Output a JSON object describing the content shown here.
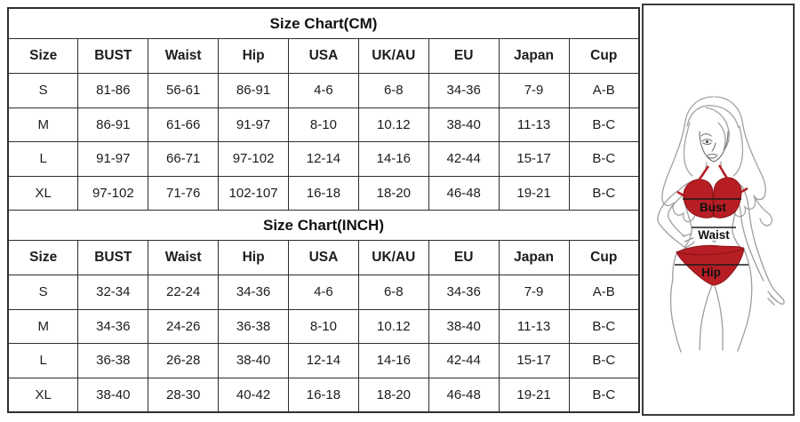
{
  "page_title": "Size Chart",
  "tables": [
    {
      "title": "Size Chart(CM)",
      "columns": [
        "Size",
        "BUST",
        "Waist",
        "Hip",
        "USA",
        "UK/AU",
        "EU",
        "Japan",
        "Cup"
      ],
      "rows": [
        [
          "S",
          "81-86",
          "56-61",
          "86-91",
          "4-6",
          "6-8",
          "34-36",
          "7-9",
          "A-B"
        ],
        [
          "M",
          "86-91",
          "61-66",
          "91-97",
          "8-10",
          "10.12",
          "38-40",
          "11-13",
          "B-C"
        ],
        [
          "L",
          "91-97",
          "66-71",
          "97-102",
          "12-14",
          "14-16",
          "42-44",
          "15-17",
          "B-C"
        ],
        [
          "XL",
          "97-102",
          "71-76",
          "102-107",
          "16-18",
          "18-20",
          "46-48",
          "19-21",
          "B-C"
        ]
      ]
    },
    {
      "title": "Size Chart(INCH)",
      "columns": [
        "Size",
        "BUST",
        "Waist",
        "Hip",
        "USA",
        "UK/AU",
        "EU",
        "Japan",
        "Cup"
      ],
      "rows": [
        [
          "S",
          "32-34",
          "22-24",
          "34-36",
          "4-6",
          "6-8",
          "34-36",
          "7-9",
          "A-B"
        ],
        [
          "M",
          "34-36",
          "24-26",
          "36-38",
          "8-10",
          "10.12",
          "38-40",
          "11-13",
          "B-C"
        ],
        [
          "L",
          "36-38",
          "26-28",
          "38-40",
          "12-14",
          "14-16",
          "42-44",
          "15-17",
          "B-C"
        ],
        [
          "XL",
          "38-40",
          "28-30",
          "40-42",
          "16-18",
          "18-20",
          "46-48",
          "19-21",
          "B-C"
        ]
      ]
    }
  ],
  "chart_data": [
    {
      "type": "table",
      "title": "Size Chart(CM)",
      "columns": [
        "Size",
        "BUST",
        "Waist",
        "Hip",
        "USA",
        "UK/AU",
        "EU",
        "Japan",
        "Cup"
      ],
      "rows": [
        [
          "S",
          "81-86",
          "56-61",
          "86-91",
          "4-6",
          "6-8",
          "34-36",
          "7-9",
          "A-B"
        ],
        [
          "M",
          "86-91",
          "61-66",
          "91-97",
          "8-10",
          "10.12",
          "38-40",
          "11-13",
          "B-C"
        ],
        [
          "L",
          "91-97",
          "66-71",
          "97-102",
          "12-14",
          "14-16",
          "42-44",
          "15-17",
          "B-C"
        ],
        [
          "XL",
          "97-102",
          "71-76",
          "102-107",
          "16-18",
          "18-20",
          "46-48",
          "19-21",
          "B-C"
        ]
      ]
    },
    {
      "type": "table",
      "title": "Size Chart(INCH)",
      "columns": [
        "Size",
        "BUST",
        "Waist",
        "Hip",
        "USA",
        "UK/AU",
        "EU",
        "Japan",
        "Cup"
      ],
      "rows": [
        [
          "S",
          "32-34",
          "22-24",
          "34-36",
          "4-6",
          "6-8",
          "34-36",
          "7-9",
          "A-B"
        ],
        [
          "M",
          "34-36",
          "24-26",
          "36-38",
          "8-10",
          "10.12",
          "38-40",
          "11-13",
          "B-C"
        ],
        [
          "L",
          "36-38",
          "26-28",
          "38-40",
          "12-14",
          "14-16",
          "42-44",
          "15-17",
          "B-C"
        ],
        [
          "XL",
          "38-40",
          "28-30",
          "40-42",
          "16-18",
          "18-20",
          "46-48",
          "19-21",
          "B-C"
        ]
      ]
    }
  ],
  "figure": {
    "labels": {
      "bust": "Bust",
      "waist": "Waist",
      "hip": "Hip"
    },
    "colors": {
      "bikini_red": "#b71e24",
      "bikini_red_dark": "#8d1419",
      "body_outline": "#a2a2a2",
      "face_detail": "#6e6e6e",
      "measure_line": "#1a1a1a",
      "border": "#3a3a3a"
    }
  }
}
